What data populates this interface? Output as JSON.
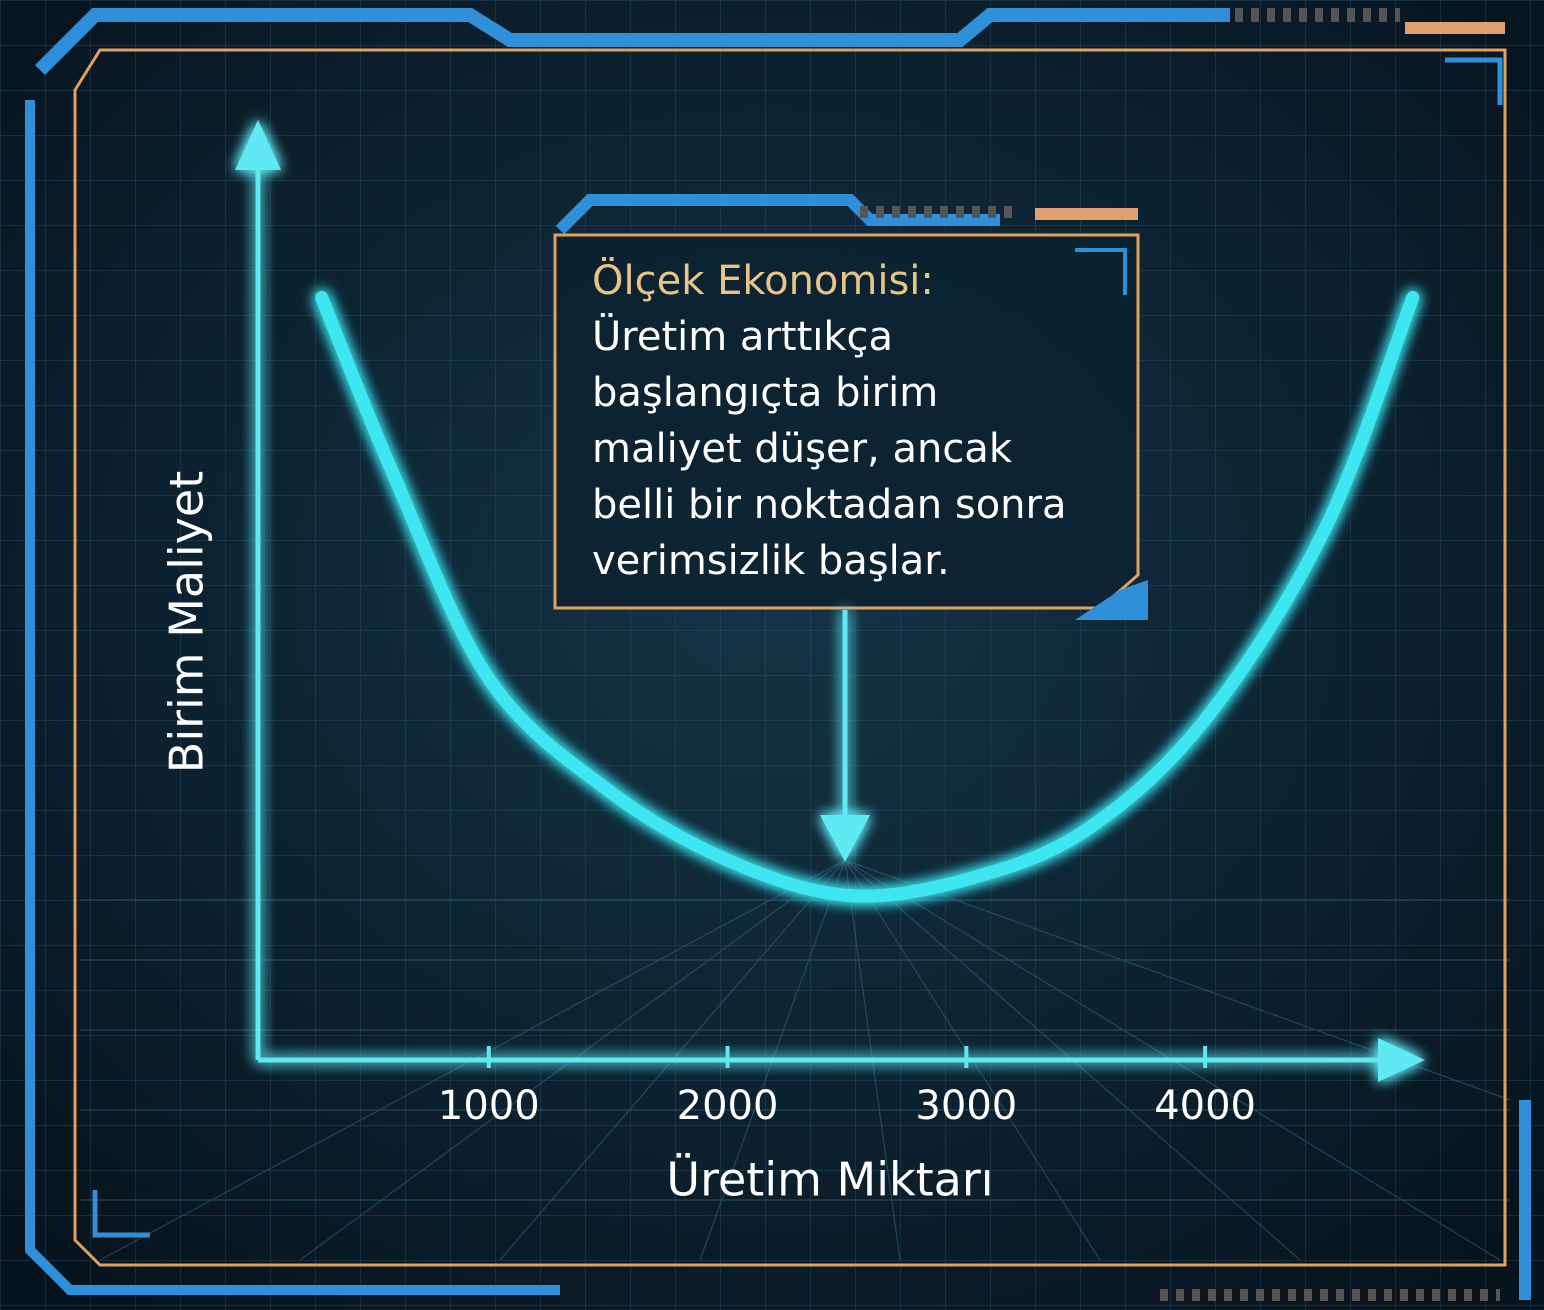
{
  "chart_data": {
    "type": "line",
    "x_label": "Üretim Miktarı",
    "y_label": "Birim Maliyet",
    "x": [
      300,
      600,
      1000,
      1500,
      2000,
      2500,
      3000,
      3500,
      4000,
      4500,
      4870
    ],
    "series": [
      {
        "color": "#3ee6f0",
        "values": [
          82,
          63,
          41,
          29,
          21.5,
          17.7,
          19.4,
          24.7,
          36.6,
          57,
          82
        ]
      }
    ],
    "xlim": [
      0,
      4900
    ],
    "xticks": [
      1000,
      2000,
      3000,
      4000
    ],
    "ylim": [
      0,
      100
    ],
    "annotation": {
      "title": "Ölçek Ekonomisi:",
      "lines": [
        "Üretim arttıkça",
        "başlangıçta birim",
        "maliyet düşer, ancak",
        "belli bir noktadan sonra",
        "verimsizlik başlar."
      ]
    }
  }
}
